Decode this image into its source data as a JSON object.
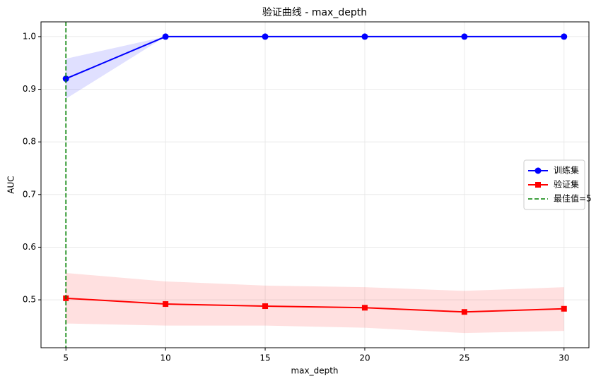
{
  "chart_data": {
    "type": "line",
    "title": "验证曲线 - max_depth",
    "x_label": "max_depth",
    "y_label": "AUC",
    "x": [
      5,
      10,
      15,
      20,
      25,
      30
    ],
    "series": [
      {
        "name": "训练集",
        "color": "#0000ff",
        "marker": "circle",
        "values": [
          0.92,
          1.0,
          1.0,
          1.0,
          1.0,
          1.0
        ],
        "lower": [
          0.882,
          1.0,
          1.0,
          1.0,
          1.0,
          1.0
        ],
        "upper": [
          0.958,
          1.0,
          1.0,
          1.0,
          1.0,
          1.0
        ]
      },
      {
        "name": "验证集",
        "color": "#ff0000",
        "marker": "square",
        "values": [
          0.503,
          0.492,
          0.488,
          0.485,
          0.477,
          0.483
        ],
        "lower": [
          0.455,
          0.451,
          0.451,
          0.447,
          0.437,
          0.441
        ],
        "upper": [
          0.551,
          0.535,
          0.527,
          0.524,
          0.517,
          0.524
        ]
      }
    ],
    "vlines": [
      {
        "x": 5,
        "name": "最佳值=5",
        "color": "#008000"
      }
    ],
    "xlim": [
      3.75,
      31.25
    ],
    "ylim": [
      0.409,
      1.028
    ],
    "xticks": [
      5,
      10,
      15,
      20,
      25,
      30
    ],
    "yticks": [
      0.5,
      0.6,
      0.7,
      0.8,
      0.9,
      {
        "value": 1.0,
        "label": "1.0"
      }
    ],
    "grid": true,
    "legend": "right"
  }
}
